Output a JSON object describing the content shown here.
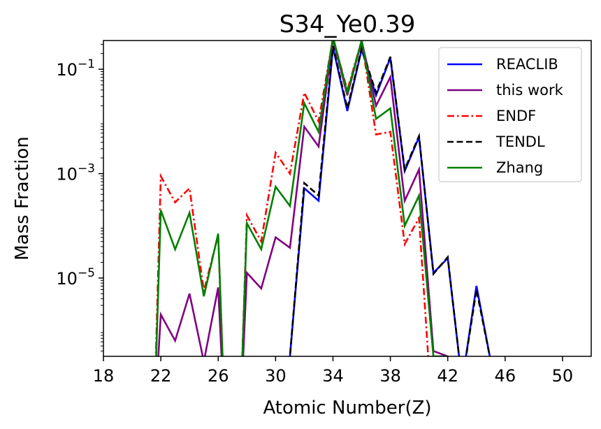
{
  "chart_data": {
    "type": "line",
    "title": "S34_Ye0.39",
    "xlabel": "Atomic Number(Z)",
    "ylabel": "Mass Fraction",
    "xlim": [
      18,
      52
    ],
    "ylim_log10": [
      -6.5,
      -0.45
    ],
    "yscale": "log",
    "x_ticks": [
      18,
      22,
      26,
      30,
      34,
      38,
      42,
      46,
      50
    ],
    "y_ticks": [
      {
        "exp": -5,
        "base": "10",
        "sup": "−5"
      },
      {
        "exp": -3,
        "base": "10",
        "sup": "−3"
      },
      {
        "exp": -1,
        "base": "10",
        "sup": "−1"
      }
    ],
    "legend_position": "top-right",
    "grid": false,
    "series": [
      {
        "name": "REACLIB",
        "color": "#0000ff",
        "dash": "solid",
        "points": [
          [
            30,
            -7.5
          ],
          [
            31,
            -6.5
          ],
          [
            32,
            -3.28
          ],
          [
            33,
            -3.52
          ],
          [
            34,
            -0.58
          ],
          [
            35,
            -1.8
          ],
          [
            36,
            -0.62
          ],
          [
            37,
            -1.5
          ],
          [
            38,
            -0.78
          ],
          [
            39,
            -2.95
          ],
          [
            40,
            -2.3
          ],
          [
            41,
            -4.9
          ],
          [
            42,
            -4.62
          ],
          [
            43,
            -7.0
          ],
          [
            44,
            -5.15
          ],
          [
            45,
            -6.6
          ],
          [
            46,
            -8.0
          ]
        ]
      },
      {
        "name": "this work",
        "color": "#800080",
        "dash": "solid",
        "points": [
          [
            21.5,
            -8.0
          ],
          [
            22,
            -5.7
          ],
          [
            23,
            -6.2
          ],
          [
            24,
            -5.3
          ],
          [
            25,
            -6.6
          ],
          [
            26,
            -5.18
          ],
          [
            26.5,
            -8.0
          ],
          [
            27.5,
            -8.0
          ],
          [
            28,
            -4.9
          ],
          [
            29,
            -5.2
          ],
          [
            30,
            -4.22
          ],
          [
            31,
            -4.42
          ],
          [
            32,
            -2.1
          ],
          [
            33,
            -2.48
          ],
          [
            34,
            -0.42
          ],
          [
            35,
            -1.5
          ],
          [
            36,
            -0.45
          ],
          [
            37,
            -1.7
          ],
          [
            38,
            -1.15
          ],
          [
            39,
            -3.52
          ],
          [
            40,
            -2.92
          ],
          [
            41,
            -6.4
          ],
          [
            42,
            -6.5
          ],
          [
            42.3,
            -8.0
          ]
        ]
      },
      {
        "name": "ENDF",
        "color": "#ff0000",
        "dash": "dashdot",
        "points": [
          [
            21.5,
            -8.0
          ],
          [
            22,
            -3.05
          ],
          [
            23,
            -3.55
          ],
          [
            24,
            -3.28
          ],
          [
            25,
            -5.25
          ],
          [
            26,
            -4.18
          ],
          [
            26.5,
            -8.0
          ],
          [
            27.5,
            -8.0
          ],
          [
            28,
            -3.8
          ],
          [
            29,
            -4.3
          ],
          [
            30,
            -2.6
          ],
          [
            31,
            -3.0
          ],
          [
            32,
            -1.45
          ],
          [
            33,
            -2.0
          ],
          [
            34,
            -0.4
          ],
          [
            35,
            -1.4
          ],
          [
            36,
            -0.45
          ],
          [
            37,
            -2.25
          ],
          [
            38,
            -2.2
          ],
          [
            39,
            -4.35
          ],
          [
            40,
            -3.85
          ],
          [
            41,
            -8.0
          ]
        ]
      },
      {
        "name": "TENDL",
        "color": "#000000",
        "dash": "dashed",
        "points": [
          [
            30,
            -7.5
          ],
          [
            31,
            -6.5
          ],
          [
            32,
            -3.18
          ],
          [
            33,
            -3.42
          ],
          [
            34,
            -0.55
          ],
          [
            35,
            -1.75
          ],
          [
            36,
            -0.6
          ],
          [
            37,
            -1.45
          ],
          [
            38,
            -0.76
          ],
          [
            39,
            -2.92
          ],
          [
            40,
            -2.28
          ],
          [
            41,
            -4.92
          ],
          [
            42,
            -4.6
          ],
          [
            43,
            -7.0
          ],
          [
            44,
            -5.22
          ],
          [
            45,
            -6.6
          ],
          [
            46,
            -8.0
          ]
        ]
      },
      {
        "name": "Zhang",
        "color": "#008000",
        "dash": "solid",
        "points": [
          [
            21.5,
            -8.0
          ],
          [
            22,
            -3.7
          ],
          [
            23,
            -4.45
          ],
          [
            24,
            -3.75
          ],
          [
            25,
            -5.35
          ],
          [
            26,
            -4.15
          ],
          [
            26.5,
            -8.0
          ],
          [
            27.5,
            -8.0
          ],
          [
            28,
            -3.95
          ],
          [
            29,
            -4.45
          ],
          [
            30,
            -3.25
          ],
          [
            31,
            -3.62
          ],
          [
            32,
            -1.65
          ],
          [
            33,
            -2.2
          ],
          [
            34,
            -0.38
          ],
          [
            35,
            -1.45
          ],
          [
            36,
            -0.45
          ],
          [
            37,
            -1.95
          ],
          [
            38,
            -1.75
          ],
          [
            39,
            -4.0
          ],
          [
            40,
            -3.42
          ],
          [
            41,
            -6.5
          ],
          [
            42,
            -6.5
          ]
        ]
      }
    ]
  }
}
